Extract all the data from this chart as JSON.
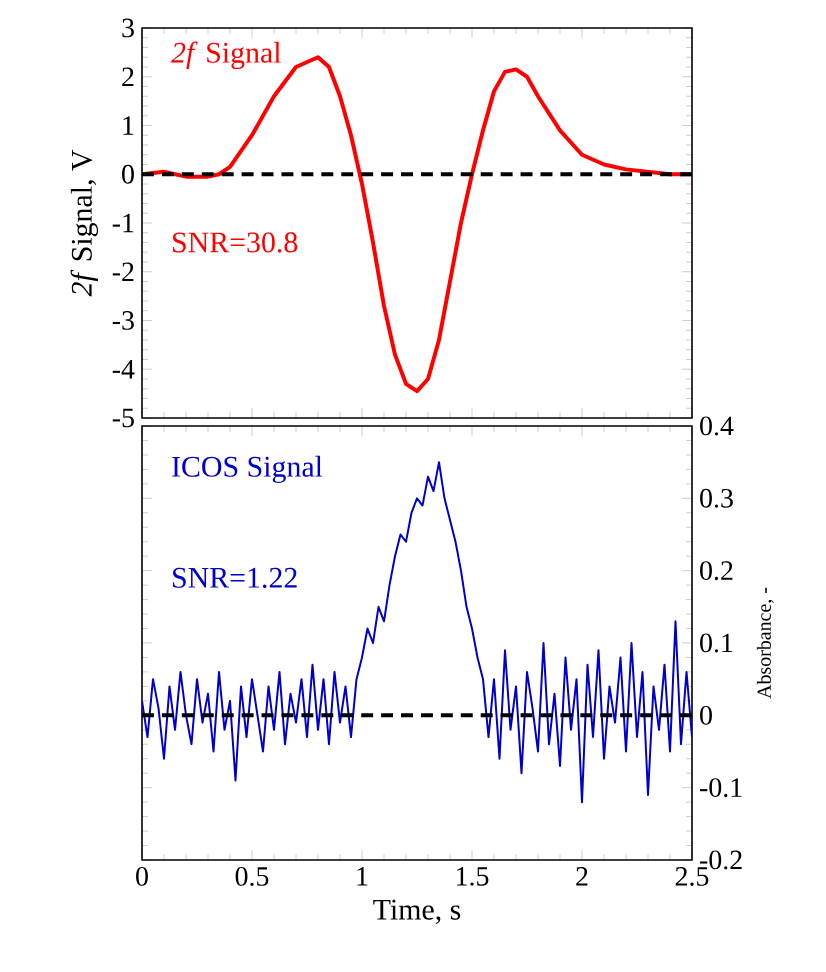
{
  "chart_data": [
    {
      "type": "line",
      "ylabel": "*2f* Signal, V",
      "annotations": [
        "*2f* Signal",
        "SNR=30.8"
      ],
      "xlim": [
        0,
        2.5
      ],
      "xticks": [
        0,
        0.5,
        1,
        1.5,
        2,
        2.5
      ],
      "ylim": [
        -5,
        3
      ],
      "yticks": [
        -5,
        -4,
        -3,
        -2,
        -1,
        0,
        1,
        2,
        3
      ],
      "tick_labels": "y",
      "series": [
        {
          "color": "#ff0000",
          "x": [
            0,
            0.1,
            0.2,
            0.3,
            0.35,
            0.4,
            0.5,
            0.6,
            0.7,
            0.8,
            0.85,
            0.9,
            0.95,
            1.0,
            1.05,
            1.1,
            1.15,
            1.2,
            1.25,
            1.3,
            1.35,
            1.4,
            1.45,
            1.5,
            1.55,
            1.6,
            1.65,
            1.7,
            1.75,
            1.8,
            1.9,
            2.0,
            2.1,
            2.2,
            2.3,
            2.4,
            2.5
          ],
          "values": [
            0,
            0.05,
            -0.05,
            -0.05,
            0.0,
            0.15,
            0.8,
            1.6,
            2.2,
            2.4,
            2.2,
            1.6,
            0.8,
            -0.2,
            -1.4,
            -2.7,
            -3.7,
            -4.3,
            -4.45,
            -4.2,
            -3.4,
            -2.2,
            -1.0,
            0.0,
            0.9,
            1.7,
            2.1,
            2.15,
            2.0,
            1.6,
            0.9,
            0.4,
            0.2,
            0.1,
            0.05,
            0.0,
            0.0
          ]
        }
      ],
      "ref_lines": [
        {
          "axis": "y",
          "value": 0,
          "color": "#000000",
          "line_style": "dashed"
        }
      ]
    },
    {
      "type": "line",
      "xlabel": "Time, s",
      "y2label": "Absorbance, -",
      "annotations": [
        "ICOS Signal",
        "SNR=1.22"
      ],
      "xlim": [
        0,
        2.5
      ],
      "xticks": [
        0,
        0.5,
        1,
        1.5,
        2,
        2.5
      ],
      "y2lim": [
        -0.2,
        0.4
      ],
      "y2ticks": [
        -0.2,
        -0.1,
        0,
        0.1,
        0.2,
        0.3,
        0.4
      ],
      "series": [
        {
          "color": "#0000cc",
          "axis": "y2",
          "x": [
            0,
            0.025,
            0.05,
            0.075,
            0.1,
            0.125,
            0.15,
            0.175,
            0.2,
            0.225,
            0.25,
            0.275,
            0.3,
            0.325,
            0.35,
            0.375,
            0.4,
            0.425,
            0.45,
            0.475,
            0.5,
            0.525,
            0.55,
            0.575,
            0.6,
            0.625,
            0.65,
            0.675,
            0.7,
            0.725,
            0.75,
            0.775,
            0.8,
            0.825,
            0.85,
            0.875,
            0.9,
            0.925,
            0.95,
            0.975,
            1.0,
            1.025,
            1.05,
            1.075,
            1.1,
            1.125,
            1.15,
            1.175,
            1.2,
            1.225,
            1.25,
            1.275,
            1.3,
            1.325,
            1.35,
            1.375,
            1.4,
            1.425,
            1.45,
            1.475,
            1.5,
            1.525,
            1.55,
            1.575,
            1.6,
            1.625,
            1.65,
            1.675,
            1.7,
            1.725,
            1.75,
            1.775,
            1.8,
            1.825,
            1.85,
            1.875,
            1.9,
            1.925,
            1.95,
            1.975,
            2.0,
            2.025,
            2.05,
            2.075,
            2.1,
            2.125,
            2.15,
            2.175,
            2.2,
            2.225,
            2.25,
            2.275,
            2.3,
            2.325,
            2.35,
            2.375,
            2.4,
            2.425,
            2.45,
            2.475,
            2.5
          ],
          "values": [
            0.02,
            -0.03,
            0.05,
            0.01,
            -0.06,
            0.04,
            -0.02,
            0.06,
            0.0,
            -0.04,
            0.05,
            -0.01,
            0.03,
            -0.05,
            0.06,
            -0.02,
            0.02,
            -0.09,
            0.04,
            -0.03,
            0.05,
            0.0,
            -0.05,
            0.04,
            -0.02,
            0.06,
            -0.04,
            0.03,
            -0.01,
            0.05,
            -0.03,
            0.07,
            -0.02,
            0.05,
            -0.04,
            0.06,
            -0.01,
            0.04,
            -0.03,
            0.05,
            0.08,
            0.12,
            0.1,
            0.15,
            0.13,
            0.18,
            0.22,
            0.25,
            0.24,
            0.28,
            0.3,
            0.29,
            0.33,
            0.31,
            0.35,
            0.3,
            0.27,
            0.24,
            0.2,
            0.15,
            0.12,
            0.08,
            0.05,
            -0.03,
            0.05,
            -0.06,
            0.09,
            -0.02,
            0.04,
            -0.08,
            0.06,
            0.01,
            -0.05,
            0.1,
            -0.04,
            0.03,
            -0.07,
            0.08,
            -0.02,
            0.05,
            -0.12,
            0.07,
            -0.03,
            0.09,
            -0.06,
            0.04,
            -0.01,
            0.08,
            -0.05,
            0.1,
            -0.03,
            0.06,
            -0.11,
            0.04,
            -0.02,
            0.07,
            -0.05,
            0.13,
            -0.04,
            0.06,
            -0.03
          ]
        }
      ],
      "ref_lines": [
        {
          "axis": "y2",
          "value": 0,
          "color": "#000000",
          "line_style": "dashed"
        }
      ]
    }
  ]
}
